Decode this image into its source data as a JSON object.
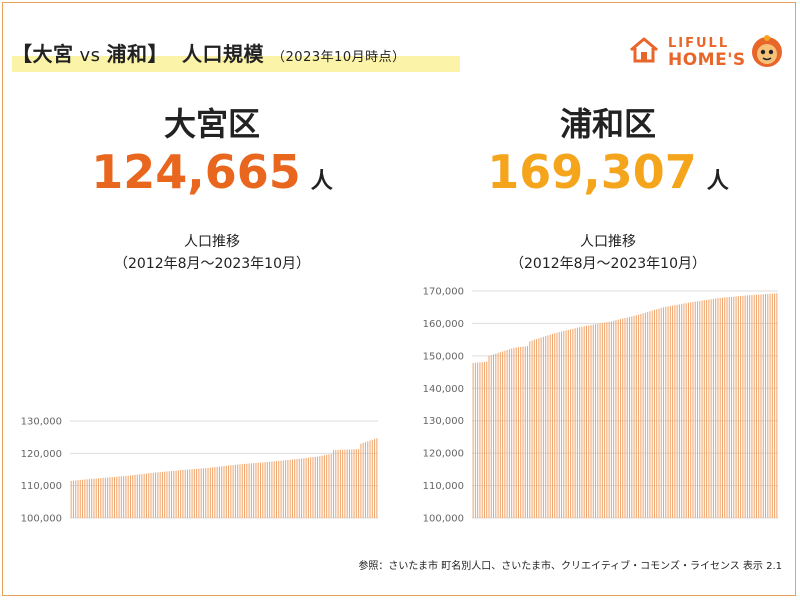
{
  "header": {
    "title_part1": "【大宮",
    "title_vs": "vs",
    "title_part2": "浦和】",
    "title_main": "人口規模",
    "title_date": "（2023年10月時点）"
  },
  "logo": {
    "line1": "LIFULL",
    "line2": "HOME'S"
  },
  "panels": [
    {
      "ward": "大宮区",
      "population": "124,665",
      "unit": "人",
      "chart_title": "人口推移",
      "chart_period": "（2012年8月～2023年10月）"
    },
    {
      "ward": "浦和区",
      "population": "169,307",
      "unit": "人",
      "chart_title": "人口推移",
      "chart_period": "（2012年8月～2023年10月）"
    }
  ],
  "source": "参照：さいたま市 町名別人口、さいたま市、クリエイティブ・コモンズ・ライセンス 表示 2.1",
  "colors": {
    "accent_omiya": "#e8661d",
    "accent_urawa": "#f4a51c",
    "bar": "#f0a56c",
    "grid": "#dddddd",
    "frame": "#e8a15a"
  },
  "chart_data": [
    {
      "type": "bar",
      "x_start": "2012-08",
      "x_end": "2023-10",
      "ylim": [
        100000,
        130000
      ],
      "yticks": [
        "100,000",
        "110,000",
        "120,000",
        "130,000"
      ],
      "keyframes": [
        [
          0,
          111500
        ],
        [
          12,
          112300
        ],
        [
          24,
          113000
        ],
        [
          36,
          114000
        ],
        [
          48,
          114800
        ],
        [
          60,
          115500
        ],
        [
          72,
          116500
        ],
        [
          84,
          117200
        ],
        [
          96,
          118000
        ],
        [
          108,
          119000
        ],
        [
          114,
          119800
        ],
        [
          115,
          121000
        ],
        [
          126,
          121300
        ],
        [
          127,
          123000
        ],
        [
          134,
          124665
        ]
      ]
    },
    {
      "type": "bar",
      "x_start": "2012-08",
      "x_end": "2023-10",
      "ylim": [
        100000,
        170000
      ],
      "yticks": [
        "100,000",
        "110,000",
        "120,000",
        "130,000",
        "140,000",
        "150,000",
        "160,000",
        "170,000"
      ],
      "keyframes": [
        [
          0,
          147800
        ],
        [
          6,
          148200
        ],
        [
          7,
          150000
        ],
        [
          18,
          152500
        ],
        [
          24,
          153000
        ],
        [
          25,
          154500
        ],
        [
          36,
          157000
        ],
        [
          48,
          159000
        ],
        [
          60,
          160500
        ],
        [
          72,
          162500
        ],
        [
          84,
          165000
        ],
        [
          96,
          166500
        ],
        [
          108,
          167800
        ],
        [
          120,
          168600
        ],
        [
          134,
          169307
        ]
      ]
    }
  ]
}
